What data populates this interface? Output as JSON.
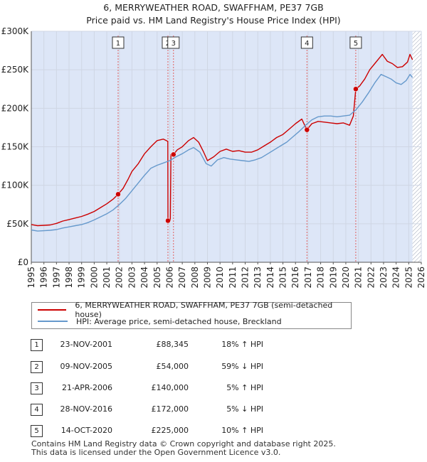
{
  "title_line1": "6, MERRYWEATHER ROAD, SWAFFHAM, PE37 7GB",
  "title_line2": "Price paid vs. HM Land Registry's House Price Index (HPI)",
  "colors": {
    "price_line": "#cc0000",
    "hpi_line": "#6699cc",
    "marker": "#cc0000",
    "band": "#dde6f7",
    "vline": "#e06060",
    "grid": "#cfd6e4"
  },
  "chart_data": {
    "type": "line",
    "x_range": [
      1995,
      2026
    ],
    "ylim": [
      0,
      300000
    ],
    "yticks": [
      0,
      50000,
      100000,
      150000,
      200000,
      250000,
      300000
    ],
    "ytick_labels": [
      "£0",
      "£50K",
      "£100K",
      "£150K",
      "£200K",
      "£250K",
      "£300K"
    ],
    "xticks": [
      1995,
      1996,
      1997,
      1998,
      1999,
      2000,
      2001,
      2002,
      2003,
      2004,
      2005,
      2006,
      2007,
      2008,
      2009,
      2010,
      2011,
      2012,
      2013,
      2014,
      2015,
      2016,
      2017,
      2018,
      2019,
      2020,
      2021,
      2022,
      2023,
      2024,
      2025,
      2026
    ],
    "xtick_labels": [
      "1995",
      "1996",
      "1997",
      "1998",
      "1999",
      "2000",
      "2001",
      "2002",
      "2003",
      "2004",
      "2005",
      "2006",
      "2007",
      "2008",
      "2009",
      "2010",
      "2011",
      "2012",
      "2013",
      "2014",
      "2015",
      "2016",
      "2017",
      "2018",
      "2019",
      "2020",
      "2021",
      "2022",
      "2023",
      "2024",
      "2025",
      "2026"
    ],
    "shaded_band_x": [
      1995,
      2025.3
    ],
    "hatched_from_x": 2025.3,
    "series": [
      {
        "name": "6, MERRYWEATHER ROAD, SWAFFHAM, PE37 7GB (semi-detached house)",
        "color": "#cc0000",
        "points": [
          [
            1995,
            49000
          ],
          [
            1995.5,
            47500
          ],
          [
            1996,
            48000
          ],
          [
            1996.5,
            48500
          ],
          [
            1997,
            50500
          ],
          [
            1997.5,
            53500
          ],
          [
            1998,
            55500
          ],
          [
            1998.5,
            57500
          ],
          [
            1999,
            59500
          ],
          [
            1999.5,
            62500
          ],
          [
            2000,
            66000
          ],
          [
            2000.5,
            71000
          ],
          [
            2001,
            76000
          ],
          [
            2001.5,
            82000
          ],
          [
            2001.9,
            88345
          ],
          [
            2002.3,
            96000
          ],
          [
            2002.7,
            108000
          ],
          [
            2003,
            118000
          ],
          [
            2003.5,
            128000
          ],
          [
            2004,
            141000
          ],
          [
            2004.5,
            150000
          ],
          [
            2005,
            158000
          ],
          [
            2005.5,
            160000
          ],
          [
            2005.85,
            157000
          ],
          [
            2005.86,
            54000
          ],
          [
            2006.05,
            54000
          ],
          [
            2006.1,
            140000
          ],
          [
            2006.3,
            140000
          ],
          [
            2006.6,
            146000
          ],
          [
            2007,
            150000
          ],
          [
            2007.5,
            158000
          ],
          [
            2007.9,
            162000
          ],
          [
            2008.3,
            156000
          ],
          [
            2008.7,
            143000
          ],
          [
            2009,
            132000
          ],
          [
            2009.5,
            137000
          ],
          [
            2010,
            144000
          ],
          [
            2010.5,
            147000
          ],
          [
            2011,
            144000
          ],
          [
            2011.5,
            145000
          ],
          [
            2012,
            143000
          ],
          [
            2012.5,
            143000
          ],
          [
            2013,
            146000
          ],
          [
            2013.5,
            151000
          ],
          [
            2014,
            156000
          ],
          [
            2014.5,
            162000
          ],
          [
            2015,
            166000
          ],
          [
            2015.5,
            173000
          ],
          [
            2016,
            180000
          ],
          [
            2016.5,
            186000
          ],
          [
            2016.9,
            172000
          ],
          [
            2017.3,
            180000
          ],
          [
            2017.8,
            183000
          ],
          [
            2018.3,
            182000
          ],
          [
            2018.8,
            181000
          ],
          [
            2019.3,
            180000
          ],
          [
            2019.8,
            181000
          ],
          [
            2020.3,
            178000
          ],
          [
            2020.6,
            190000
          ],
          [
            2020.79,
            225000
          ],
          [
            2021.1,
            229000
          ],
          [
            2021.5,
            238000
          ],
          [
            2021.9,
            250000
          ],
          [
            2022.3,
            258000
          ],
          [
            2022.7,
            266000
          ],
          [
            2022.9,
            270000
          ],
          [
            2023.3,
            261000
          ],
          [
            2023.7,
            258000
          ],
          [
            2024.1,
            253000
          ],
          [
            2024.5,
            254000
          ],
          [
            2024.9,
            260000
          ],
          [
            2025.1,
            270000
          ],
          [
            2025.3,
            263000
          ]
        ]
      },
      {
        "name": "HPI: Average price, semi-detached house, Breckland",
        "color": "#6699cc",
        "points": [
          [
            1995,
            42000
          ],
          [
            1995.5,
            40500
          ],
          [
            1996,
            41000
          ],
          [
            1996.5,
            41500
          ],
          [
            1997,
            42500
          ],
          [
            1997.5,
            44500
          ],
          [
            1998,
            46000
          ],
          [
            1998.5,
            47500
          ],
          [
            1999,
            49000
          ],
          [
            1999.5,
            51500
          ],
          [
            2000,
            55000
          ],
          [
            2000.5,
            59000
          ],
          [
            2001,
            63000
          ],
          [
            2001.5,
            68000
          ],
          [
            2002,
            75000
          ],
          [
            2002.5,
            83000
          ],
          [
            2003,
            93000
          ],
          [
            2003.5,
            103000
          ],
          [
            2004,
            113000
          ],
          [
            2004.5,
            122000
          ],
          [
            2005,
            126000
          ],
          [
            2005.5,
            129000
          ],
          [
            2006,
            132000
          ],
          [
            2006.5,
            137000
          ],
          [
            2007,
            141000
          ],
          [
            2007.5,
            146000
          ],
          [
            2007.9,
            149000
          ],
          [
            2008.4,
            143000
          ],
          [
            2008.9,
            128000
          ],
          [
            2009.3,
            125000
          ],
          [
            2009.8,
            133000
          ],
          [
            2010.3,
            136000
          ],
          [
            2010.8,
            134000
          ],
          [
            2011.3,
            133000
          ],
          [
            2011.8,
            132000
          ],
          [
            2012.3,
            131000
          ],
          [
            2012.8,
            133000
          ],
          [
            2013.3,
            136000
          ],
          [
            2013.8,
            141000
          ],
          [
            2014.3,
            146000
          ],
          [
            2014.8,
            151000
          ],
          [
            2015.3,
            156000
          ],
          [
            2015.8,
            163000
          ],
          [
            2016.3,
            170000
          ],
          [
            2016.8,
            178000
          ],
          [
            2017.3,
            185000
          ],
          [
            2017.8,
            189000
          ],
          [
            2018.3,
            190000
          ],
          [
            2018.8,
            190000
          ],
          [
            2019.3,
            189000
          ],
          [
            2019.8,
            190000
          ],
          [
            2020.3,
            191000
          ],
          [
            2020.8,
            198000
          ],
          [
            2021.3,
            208000
          ],
          [
            2021.8,
            220000
          ],
          [
            2022.3,
            233000
          ],
          [
            2022.8,
            244000
          ],
          [
            2023.2,
            241000
          ],
          [
            2023.6,
            238000
          ],
          [
            2024.0,
            233000
          ],
          [
            2024.4,
            231000
          ],
          [
            2024.8,
            236000
          ],
          [
            2025.1,
            244000
          ],
          [
            2025.3,
            240000
          ]
        ]
      }
    ],
    "sales": [
      {
        "num": "1",
        "x": 2001.9,
        "price": 88345
      },
      {
        "num": "2",
        "x": 2005.86,
        "price": 54000
      },
      {
        "num": "3",
        "x": 2006.3,
        "price": 140000
      },
      {
        "num": "4",
        "x": 2016.91,
        "price": 172000
      },
      {
        "num": "5",
        "x": 2020.79,
        "price": 225000
      }
    ]
  },
  "legend": {
    "property": "6, MERRYWEATHER ROAD, SWAFFHAM, PE37 7GB (semi-detached house)",
    "hpi": "HPI: Average price, semi-detached house, Breckland"
  },
  "transactions": [
    {
      "num": "1",
      "date": "23-NOV-2001",
      "price": "£88,345",
      "hpi": "18% ↑ HPI"
    },
    {
      "num": "2",
      "date": "09-NOV-2005",
      "price": "£54,000",
      "hpi": "59% ↓ HPI"
    },
    {
      "num": "3",
      "date": "21-APR-2006",
      "price": "£140,000",
      "hpi": "5% ↑ HPI"
    },
    {
      "num": "4",
      "date": "28-NOV-2016",
      "price": "£172,000",
      "hpi": "5% ↓ HPI"
    },
    {
      "num": "5",
      "date": "14-OCT-2020",
      "price": "£225,000",
      "hpi": "10% ↑ HPI"
    }
  ],
  "footer": {
    "line1": "Contains HM Land Registry data © Crown copyright and database right 2025.",
    "line2": "This data is licensed under the Open Government Licence v3.0."
  }
}
